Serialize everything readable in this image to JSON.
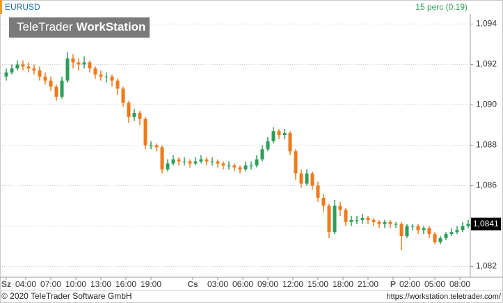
{
  "chart_data": {
    "type": "candlestick",
    "title": "EURUSD",
    "subtitle": "15 perc (0:19)",
    "up_color": "#2e9e5b",
    "down_color": "#f07a1a",
    "grid": true,
    "ylim": [
      1.0815,
      1.0945
    ],
    "yticks": [
      {
        "value": 1.082,
        "label": "1,082"
      },
      {
        "value": 1.084,
        "label": "1,084"
      },
      {
        "value": 1.086,
        "label": "1,086"
      },
      {
        "value": 1.088,
        "label": "1,088"
      },
      {
        "value": 1.09,
        "label": "1,090"
      },
      {
        "value": 1.092,
        "label": "1,092"
      },
      {
        "value": 1.094,
        "label": "1,094"
      }
    ],
    "xlim": [
      -0.5,
      83.25
    ],
    "xticks": [
      {
        "value": 0,
        "label": "Sz"
      },
      {
        "value": 3.5,
        "label": "04:00"
      },
      {
        "value": 8,
        "label": "07:00"
      },
      {
        "value": 12.5,
        "label": "10:00"
      },
      {
        "value": 17,
        "label": "13:00"
      },
      {
        "value": 21.5,
        "label": "16:00"
      },
      {
        "value": 26,
        "label": "19:00"
      },
      {
        "value": 33.5,
        "label": "Cs"
      },
      {
        "value": 38,
        "label": "03:00"
      },
      {
        "value": 42.5,
        "label": "06:00"
      },
      {
        "value": 47,
        "label": "09:00"
      },
      {
        "value": 51.5,
        "label": "12:00"
      },
      {
        "value": 56,
        "label": "15:00"
      },
      {
        "value": 60.5,
        "label": "18:00"
      },
      {
        "value": 65,
        "label": "21:00"
      },
      {
        "value": 69.5,
        "label": "P"
      },
      {
        "value": 72.5,
        "label": "02:00"
      },
      {
        "value": 77,
        "label": "05:00"
      },
      {
        "value": 81.5,
        "label": "08:00"
      }
    ],
    "last_price": {
      "value": 1.0841,
      "label": "1,0841"
    },
    "open": [
      1.0914,
      1.0916,
      1.0918,
      1.092,
      1.0919,
      1.0918,
      1.0917,
      1.0914,
      1.0912,
      1.0909,
      1.0904,
      1.0912,
      1.0923,
      1.0921,
      1.092,
      1.0921,
      1.0918,
      1.0915,
      1.0914,
      1.0914,
      1.0912,
      1.0908,
      1.0901,
      1.0894,
      1.0896,
      1.0893,
      1.088,
      1.088,
      1.0879,
      1.0868,
      1.0871,
      1.0873,
      1.0872,
      1.0872,
      1.0871,
      1.0872,
      1.0873,
      1.0872,
      1.0872,
      1.0871,
      1.087,
      1.087,
      1.0869,
      1.0868,
      1.087,
      1.087,
      1.0873,
      1.0878,
      1.0882,
      1.0887,
      1.0885,
      1.0886,
      1.0877,
      1.0866,
      1.0861,
      1.0866,
      1.086,
      1.0854,
      1.085,
      1.0837,
      1.085,
      1.0848,
      1.0842,
      1.0843,
      1.0843,
      1.0844,
      1.0843,
      1.0842,
      1.0841,
      1.0842,
      1.0841,
      1.0841,
      1.0835,
      1.084,
      1.084,
      1.0838,
      1.0839,
      1.0836,
      1.0832,
      1.0834,
      1.0836,
      1.0837,
      1.0838,
      1.084
    ],
    "high": [
      1.0918,
      1.092,
      1.0922,
      1.0922,
      1.0921,
      1.092,
      1.0919,
      1.0916,
      1.0914,
      1.091,
      1.0914,
      1.0926,
      1.0925,
      1.0923,
      1.0924,
      1.0922,
      1.0919,
      1.0917,
      1.0916,
      1.0915,
      1.0913,
      1.0909,
      1.0902,
      1.0898,
      1.0897,
      1.0894,
      1.0882,
      1.0881,
      1.088,
      1.0873,
      1.0875,
      1.0874,
      1.0874,
      1.0873,
      1.0874,
      1.0875,
      1.0874,
      1.0874,
      1.0873,
      1.0872,
      1.0872,
      1.0871,
      1.087,
      1.0872,
      1.0872,
      1.0875,
      1.088,
      1.0884,
      1.0889,
      1.0888,
      1.0888,
      1.0887,
      1.0878,
      1.0868,
      1.0868,
      1.0867,
      1.0862,
      1.0856,
      1.0851,
      1.0853,
      1.0852,
      1.0849,
      1.0845,
      1.0845,
      1.0846,
      1.0845,
      1.0844,
      1.0843,
      1.0843,
      1.0843,
      1.0842,
      1.0842,
      1.0841,
      1.0841,
      1.0841,
      1.084,
      1.084,
      1.0837,
      1.0835,
      1.0837,
      1.0839,
      1.084,
      1.0842,
      1.0843
    ],
    "low": [
      1.0912,
      1.0915,
      1.0917,
      1.0917,
      1.0916,
      1.0915,
      1.0912,
      1.091,
      1.0907,
      1.0902,
      1.0903,
      1.0911,
      1.0918,
      1.0917,
      1.0918,
      1.0916,
      1.0913,
      1.0912,
      1.0911,
      1.0909,
      1.0905,
      1.0899,
      1.0891,
      1.0892,
      1.089,
      1.0878,
      1.0878,
      1.0877,
      1.0866,
      1.0867,
      1.087,
      1.087,
      1.087,
      1.0869,
      1.087,
      1.0871,
      1.087,
      1.087,
      1.0869,
      1.0868,
      1.0868,
      1.0867,
      1.0866,
      1.0867,
      1.0868,
      1.0869,
      1.0872,
      1.0877,
      1.0881,
      1.0883,
      1.0883,
      1.0875,
      1.0863,
      1.0859,
      1.086,
      1.0858,
      1.0852,
      1.0847,
      1.0834,
      1.0836,
      1.0845,
      1.084,
      1.084,
      1.0841,
      1.0841,
      1.0841,
      1.084,
      1.0839,
      1.0839,
      1.0839,
      1.0839,
      1.0828,
      1.0834,
      1.0838,
      1.0836,
      1.0836,
      1.0834,
      1.0831,
      1.0831,
      1.0833,
      1.0835,
      1.0836,
      1.0837,
      1.0839
    ],
    "close": [
      1.0916,
      1.0918,
      1.092,
      1.0919,
      1.0918,
      1.0917,
      1.0914,
      1.0912,
      1.0909,
      1.0904,
      1.0912,
      1.0923,
      1.0921,
      1.092,
      1.0921,
      1.0918,
      1.0915,
      1.0914,
      1.0914,
      1.0912,
      1.0908,
      1.0901,
      1.0894,
      1.0896,
      1.0893,
      1.088,
      1.088,
      1.0879,
      1.0868,
      1.0871,
      1.0873,
      1.0872,
      1.0872,
      1.0871,
      1.0872,
      1.0873,
      1.0872,
      1.0872,
      1.0871,
      1.087,
      1.087,
      1.0869,
      1.0868,
      1.087,
      1.087,
      1.0873,
      1.0878,
      1.0882,
      1.0887,
      1.0885,
      1.0886,
      1.0877,
      1.0866,
      1.0861,
      1.0866,
      1.086,
      1.0854,
      1.085,
      1.0837,
      1.085,
      1.0848,
      1.0842,
      1.0843,
      1.0843,
      1.0844,
      1.0843,
      1.0842,
      1.0841,
      1.0842,
      1.0841,
      1.0841,
      1.0835,
      1.084,
      1.084,
      1.0838,
      1.0839,
      1.0836,
      1.0832,
      1.0834,
      1.0836,
      1.0837,
      1.0838,
      1.084,
      1.0841
    ]
  },
  "watermark": {
    "brand": "TeleTrader",
    "product": "WorkStation"
  },
  "footer": {
    "copyright": "© 2020 TeleTrader Software GmbH",
    "url": "https://workstation.teletrader.com/"
  }
}
